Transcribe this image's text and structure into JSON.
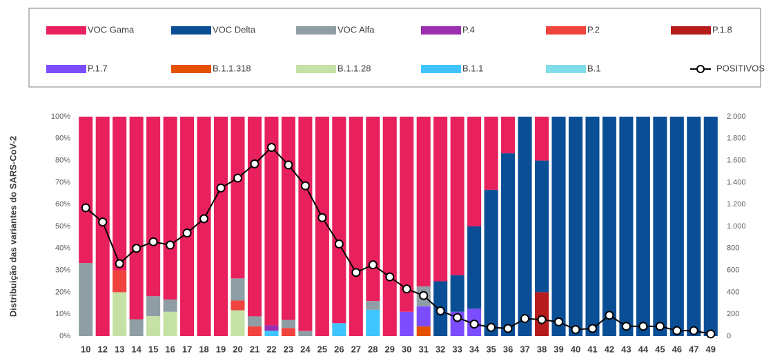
{
  "chart_data": {
    "type": "bar",
    "stacked": true,
    "y_label": "Distribuição das variantes do SARS-CoV-2",
    "categories": [
      "10",
      "12",
      "13",
      "14",
      "15",
      "16",
      "17",
      "18",
      "19",
      "20",
      "21",
      "22",
      "23",
      "24",
      "25",
      "26",
      "27",
      "28",
      "29",
      "30",
      "31",
      "32",
      "33",
      "34",
      "35",
      "36",
      "37",
      "38",
      "39",
      "40",
      "41",
      "42",
      "43",
      "44",
      "45",
      "46",
      "47",
      "49"
    ],
    "series": [
      {
        "name": "VOC Gama",
        "color": "#e8215e",
        "values": [
          66.7,
          100,
          70,
          92.3,
          81.8,
          83.3,
          100,
          100,
          100,
          73.7,
          91,
          95,
          92.6,
          97.6,
          100,
          94.1,
          100,
          84,
          100,
          88.9,
          77.3,
          75,
          72.2,
          50,
          33.3,
          16.7,
          0,
          20,
          0,
          0,
          0,
          0,
          0,
          0,
          0,
          0,
          0,
          0
        ]
      },
      {
        "name": "VOC Delta",
        "color": "#0a4f96",
        "values": [
          0,
          0,
          0,
          0,
          0,
          0,
          0,
          0,
          0,
          0,
          0,
          0,
          0,
          0,
          0,
          0,
          0,
          0,
          0,
          0,
          0,
          25,
          16.7,
          37.5,
          66.7,
          83.3,
          100,
          60,
          100,
          100,
          100,
          100,
          100,
          100,
          100,
          100,
          100,
          100
        ]
      },
      {
        "name": "VOC Alfa",
        "color": "#8f9ea4",
        "values": [
          33.3,
          0,
          0,
          7.7,
          9.1,
          5.6,
          0,
          0,
          0,
          10.1,
          4.5,
          0,
          3.7,
          2.4,
          0,
          0,
          0,
          4,
          0,
          0,
          9.1,
          0,
          0,
          0,
          0,
          0,
          0,
          0,
          0,
          0,
          0,
          0,
          0,
          0,
          0,
          0,
          0,
          0
        ]
      },
      {
        "name": "P.4",
        "color": "#9b2fae",
        "values": [
          0,
          0,
          0,
          0,
          0,
          0,
          0,
          0,
          0,
          0,
          0,
          2.5,
          0,
          0,
          0,
          0,
          0,
          0,
          0,
          0,
          0,
          0,
          0,
          0,
          0,
          0,
          0,
          0,
          0,
          0,
          0,
          0,
          0,
          0,
          0,
          0,
          0,
          0
        ]
      },
      {
        "name": "P.2",
        "color": "#f0433d",
        "values": [
          0,
          0,
          10,
          0,
          0,
          0,
          0,
          0,
          0,
          4.4,
          4.5,
          0,
          3.7,
          0,
          0,
          0,
          0,
          0,
          0,
          0,
          0,
          0,
          0,
          0,
          0,
          0,
          0,
          0,
          0,
          0,
          0,
          0,
          0,
          0,
          0,
          0,
          0,
          0
        ]
      },
      {
        "name": "P.1.8",
        "color": "#b71c1c",
        "values": [
          0,
          0,
          0,
          0,
          0,
          0,
          0,
          0,
          0,
          0,
          0,
          0,
          0,
          0,
          0,
          0,
          0,
          0,
          0,
          0,
          0,
          0,
          0,
          0,
          0,
          0,
          0,
          20,
          0,
          0,
          0,
          0,
          0,
          0,
          0,
          0,
          0,
          0
        ]
      },
      {
        "name": "P.1.7",
        "color": "#7c4dff",
        "values": [
          0,
          0,
          0,
          0,
          0,
          0,
          0,
          0,
          0,
          0,
          0,
          0,
          0,
          0,
          0,
          0,
          0,
          0,
          0,
          11.1,
          9.1,
          0,
          11.1,
          12.5,
          0,
          0,
          0,
          0,
          0,
          0,
          0,
          0,
          0,
          0,
          0,
          0,
          0,
          0
        ]
      },
      {
        "name": "B.1.1.318",
        "color": "#e65100",
        "values": [
          0,
          0,
          0,
          0,
          0,
          0,
          0,
          0,
          0,
          0,
          0,
          0,
          0,
          0,
          0,
          0,
          0,
          0,
          0,
          0,
          4.5,
          0,
          0,
          0,
          0,
          0,
          0,
          0,
          0,
          0,
          0,
          0,
          0,
          0,
          0,
          0,
          0,
          0
        ]
      },
      {
        "name": "B.1.1.28",
        "color": "#c5e1a5",
        "values": [
          0,
          0,
          20,
          0,
          9.1,
          11.1,
          0,
          0,
          0,
          11.8,
          0,
          0,
          0,
          0,
          0,
          0,
          0,
          0,
          0,
          0,
          0,
          0,
          0,
          0,
          0,
          0,
          0,
          0,
          0,
          0,
          0,
          0,
          0,
          0,
          0,
          0,
          0,
          0
        ]
      },
      {
        "name": "B.1.1",
        "color": "#40c4ff",
        "values": [
          0,
          0,
          0,
          0,
          0,
          0,
          0,
          0,
          0,
          0,
          0,
          2.5,
          0,
          0,
          0,
          5.9,
          0,
          12,
          0,
          0,
          0,
          0,
          0,
          0,
          0,
          0,
          0,
          0,
          0,
          0,
          0,
          0,
          0,
          0,
          0,
          0,
          0,
          0
        ]
      },
      {
        "name": "B.1",
        "color": "#80deea",
        "values": [
          0,
          0,
          0,
          0,
          0,
          0,
          0,
          0,
          0,
          0,
          0,
          0,
          0,
          0,
          0,
          0,
          0,
          0,
          0,
          0,
          0,
          0,
          0,
          0,
          0,
          0,
          0,
          0,
          0,
          0,
          0,
          0,
          0,
          0,
          0,
          0,
          0,
          0
        ]
      },
      {
        "name": "POSITIVOS",
        "color": "#000000",
        "axis": "y2",
        "values": [
          1170,
          1040,
          660,
          800,
          860,
          830,
          940,
          1070,
          1350,
          1440,
          1570,
          1720,
          1560,
          1370,
          1080,
          840,
          580,
          650,
          540,
          430,
          370,
          230,
          170,
          110,
          80,
          70,
          160,
          150,
          130,
          60,
          70,
          190,
          90,
          90,
          90,
          50,
          50,
          20
        ]
      }
    ],
    "ylim": [
      0,
      100
    ],
    "yticks": [
      {
        "value": 0,
        "label": "0%"
      },
      {
        "value": 10,
        "label": "10%"
      },
      {
        "value": 20,
        "label": "20%"
      },
      {
        "value": 30,
        "label": "30%"
      },
      {
        "value": 40,
        "label": "40%"
      },
      {
        "value": 50,
        "label": "50%"
      },
      {
        "value": 60,
        "label": "60%"
      },
      {
        "value": 70,
        "label": "70%"
      },
      {
        "value": 80,
        "label": "80%"
      },
      {
        "value": 90,
        "label": "90%"
      },
      {
        "value": 100,
        "label": "100%"
      }
    ],
    "y2lim": [
      0,
      2000
    ],
    "y2ticks": [
      0,
      200,
      400,
      600,
      800,
      {
        "value": 1000,
        "label": "1.000"
      },
      {
        "value": 1200,
        "label": "1.200"
      },
      {
        "value": 1400,
        "label": "1.400"
      },
      {
        "value": 1600,
        "label": "1.600"
      },
      {
        "value": 1800,
        "label": "1.800"
      },
      {
        "value": 2000,
        "label": "2.000"
      }
    ],
    "legend": "top"
  }
}
